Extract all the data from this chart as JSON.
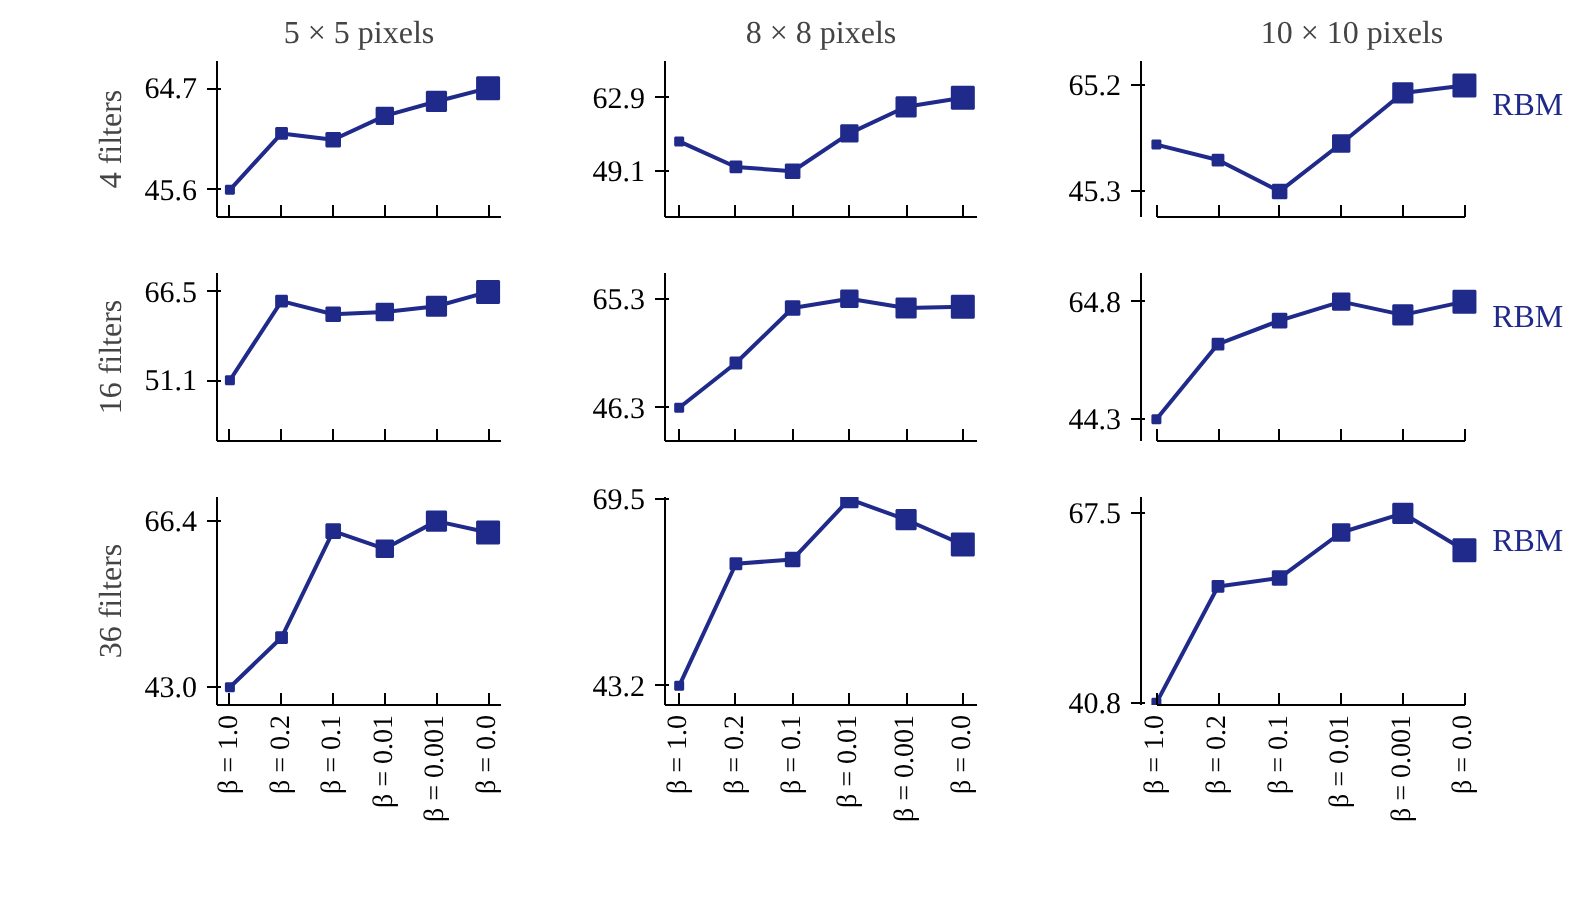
{
  "chart_data": [
    {
      "type": "line",
      "title": "5 × 5 pixels",
      "ylabel": "4 filters",
      "categories": [
        null,
        null,
        null,
        null,
        null,
        null
      ],
      "series": [
        {
          "color": "#1f2a8a",
          "values": [
            45.6,
            56.2,
            55.0,
            59.5,
            62.2,
            64.7
          ]
        }
      ],
      "ylim": [
        40.5,
        69.8
      ],
      "yticks": [
        45.6,
        64.7
      ],
      "tick_labels": "y",
      "marker": "square"
    },
    {
      "type": "line",
      "title": "8 × 8 pixels",
      "categories": [
        null,
        null,
        null,
        null,
        null,
        null
      ],
      "series": [
        {
          "color": "#1f2a8a",
          "values": [
            54.7,
            49.9,
            49.1,
            56.2,
            61.2,
            62.9
          ]
        }
      ],
      "ylim": [
        40.5,
        69.8
      ],
      "yticks": [
        49.1,
        62.9
      ],
      "tick_labels": "y",
      "marker": "square"
    },
    {
      "type": "line",
      "title": "10 × 10 pixels",
      "categories": [
        null,
        null,
        null,
        null,
        null,
        null
      ],
      "series": [
        {
          "name": "RBM",
          "color": "#1f2a8a",
          "values": [
            54.1,
            51.2,
            45.3,
            54.3,
            63.8,
            65.2
          ]
        }
      ],
      "ylim": [
        40.5,
        69.8
      ],
      "yticks": [
        45.3,
        65.2
      ],
      "tick_labels": "y",
      "marker": "square"
    },
    {
      "type": "line",
      "ylabel": "16 filters",
      "categories": [
        null,
        null,
        null,
        null,
        null,
        null
      ],
      "series": [
        {
          "color": "#1f2a8a",
          "values": [
            51.1,
            64.9,
            62.6,
            63.0,
            64.0,
            66.5
          ]
        }
      ],
      "ylim": [
        40.5,
        69.8
      ],
      "yticks": [
        51.1,
        66.5
      ],
      "tick_labels": "y",
      "marker": "square"
    },
    {
      "type": "line",
      "categories": [
        null,
        null,
        null,
        null,
        null,
        null
      ],
      "series": [
        {
          "color": "#1f2a8a",
          "values": [
            46.3,
            54.1,
            63.7,
            65.3,
            63.7,
            63.9
          ]
        }
      ],
      "ylim": [
        40.5,
        69.8
      ],
      "yticks": [
        46.3,
        65.3
      ],
      "tick_labels": "y",
      "marker": "square"
    },
    {
      "type": "line",
      "categories": [
        null,
        null,
        null,
        null,
        null,
        null
      ],
      "series": [
        {
          "name": "RBM",
          "color": "#1f2a8a",
          "values": [
            44.3,
            57.4,
            61.5,
            64.8,
            62.5,
            64.8
          ]
        }
      ],
      "ylim": [
        40.5,
        69.8
      ],
      "yticks": [
        44.3,
        64.8
      ],
      "tick_labels": "y",
      "marker": "square"
    },
    {
      "type": "line",
      "ylabel": "36 filters",
      "categories": [
        "β = 1.0",
        "β = 0.2",
        "β = 0.1",
        "β = 0.01",
        "β = 0.001",
        "β = 0.0"
      ],
      "series": [
        {
          "color": "#1f2a8a",
          "values": [
            43.0,
            50.0,
            65.0,
            62.5,
            66.4,
            64.8
          ]
        }
      ],
      "ylim": [
        40.5,
        69.8
      ],
      "yticks": [
        {
          "value": 43.0,
          "label": "43.0"
        },
        66.4
      ],
      "marker": "square"
    },
    {
      "type": "line",
      "categories": [
        "β = 1.0",
        "β = 0.2",
        "β = 0.1",
        "β = 0.01",
        "β = 0.001",
        "β = 0.0"
      ],
      "series": [
        {
          "color": "#1f2a8a",
          "values": [
            43.2,
            60.4,
            61.0,
            69.5,
            66.6,
            63.1
          ]
        }
      ],
      "ylim": [
        40.5,
        69.8
      ],
      "yticks": [
        43.2,
        69.5
      ],
      "marker": "square"
    },
    {
      "type": "line",
      "categories": [
        "β = 1.0",
        "β = 0.2",
        "β = 0.1",
        "β = 0.01",
        "β = 0.001",
        "β = 0.0"
      ],
      "series": [
        {
          "name": "RBM",
          "color": "#1f2a8a",
          "values": [
            40.8,
            57.2,
            58.4,
            64.8,
            67.5,
            62.3
          ]
        }
      ],
      "ylim": [
        40.5,
        69.8
      ],
      "yticks": [
        40.8,
        67.5
      ],
      "marker": "square"
    }
  ]
}
